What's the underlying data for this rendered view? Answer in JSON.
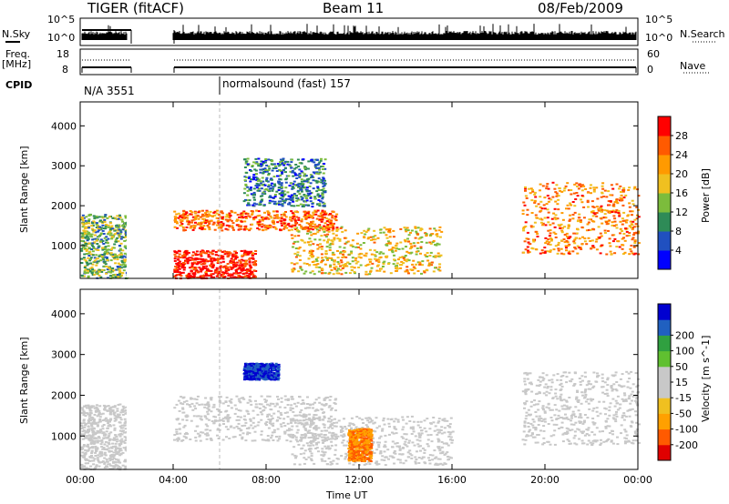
{
  "header": {
    "station": "TIGER (fitACF)",
    "beam": "Beam 11",
    "date": "08/Feb/2009"
  },
  "summary": {
    "nsky_label": "N.Sky",
    "nsearch_label": "N.Search",
    "freq_label_line1": "Freq.",
    "freq_label_line2": "[MHz]",
    "nave_label": "Nave",
    "noise_left_ticks": [
      "10^5",
      "10^0"
    ],
    "noise_right_ticks": [
      "10^5",
      "10^0"
    ],
    "freq_ticks": [
      "18",
      "8"
    ],
    "nave_ticks": [
      "60",
      "0"
    ]
  },
  "cpid": {
    "label": "CPID",
    "segments": [
      {
        "text": "N/A 3551",
        "start_hour": 0
      },
      {
        "text": "normalsound (fast) 157",
        "start_hour": 6
      }
    ]
  },
  "colors": {
    "power_scale": [
      "#0000ff",
      "#2050c0",
      "#2e8b57",
      "#7cbc3c",
      "#f0c020",
      "#ff9a00",
      "#ff5a00",
      "#ff0000"
    ],
    "velocity_scale": [
      "#e00000",
      "#ff5a00",
      "#ffa000",
      "#f0c020",
      "#c8c8c8",
      "#c8c8c8",
      "#60c030",
      "#30a040",
      "#2060c0",
      "#0000d0"
    ]
  },
  "chart_data": [
    {
      "type": "heatmap",
      "title": "Power",
      "xlabel": "Time UT",
      "ylabel": "Slant Range [km]",
      "x_ticks": [
        "00:00",
        "04:00",
        "08:00",
        "12:00",
        "16:00",
        "20:00",
        "00:00"
      ],
      "y_ticks": [
        "1000",
        "2000",
        "3000",
        "4000"
      ],
      "xlim_hours": [
        0,
        24
      ],
      "ylim_km": [
        180,
        4600
      ],
      "colorbar_label": "Power [dB]",
      "colorbar_ticks": [
        "4",
        "8",
        "12",
        "16",
        "20",
        "24",
        "28"
      ],
      "colorbar_range": [
        0,
        30
      ],
      "data_gap_hours": [
        2,
        4
      ],
      "features": [
        {
          "name": "near-range band",
          "t": [
            0,
            2
          ],
          "range_km": [
            200,
            1800
          ],
          "power_db": 12
        },
        {
          "name": "morning band",
          "t": [
            4,
            11
          ],
          "range_km": [
            1400,
            1900
          ],
          "power_db": 24
        },
        {
          "name": "morning near echoes",
          "t": [
            4,
            7.5
          ],
          "range_km": [
            200,
            900
          ],
          "power_db": 28
        },
        {
          "name": "midday echoes",
          "t": [
            9,
            15.5
          ],
          "range_km": [
            300,
            1500
          ],
          "power_db": 18
        },
        {
          "name": "high range patch",
          "t": [
            7,
            10.5
          ],
          "range_km": [
            2000,
            3200
          ],
          "power_db": 8
        },
        {
          "name": "evening descending band",
          "t": [
            19,
            24
          ],
          "range_km": [
            800,
            2600
          ],
          "power_db": 22
        }
      ]
    },
    {
      "type": "heatmap",
      "title": "Velocity",
      "xlabel": "Time UT",
      "ylabel": "Slant Range [km]",
      "x_ticks": [
        "00:00",
        "04:00",
        "08:00",
        "12:00",
        "16:00",
        "20:00",
        "00:00"
      ],
      "y_ticks": [
        "1000",
        "2000",
        "3000",
        "4000"
      ],
      "xlim_hours": [
        0,
        24
      ],
      "ylim_km": [
        180,
        4600
      ],
      "colorbar_label": "Velocity [m s^-1]",
      "colorbar_ticks": [
        "-200",
        "-100",
        "-50",
        "-15",
        "15",
        "50",
        "100",
        "200"
      ],
      "data_gap_hours": [
        2,
        4
      ],
      "features": [
        {
          "name": "ground scatter near range",
          "t": [
            0,
            2
          ],
          "range_km": [
            200,
            1800
          ],
          "velocity": 0
        },
        {
          "name": "ground scatter morning",
          "t": [
            4,
            11
          ],
          "range_km": [
            900,
            2000
          ],
          "velocity": 0
        },
        {
          "name": "positive velocity patch",
          "t": [
            7,
            8.5
          ],
          "range_km": [
            2400,
            2800
          ],
          "velocity": 200
        },
        {
          "name": "midday ground scatter",
          "t": [
            9,
            16
          ],
          "range_km": [
            300,
            1500
          ],
          "velocity": 0
        },
        {
          "name": "negative velocity streaks",
          "t": [
            11.5,
            12.5
          ],
          "range_km": [
            400,
            1200
          ],
          "velocity": -100
        },
        {
          "name": "evening ground scatter",
          "t": [
            19,
            24
          ],
          "range_km": [
            800,
            2600
          ],
          "velocity": 0
        }
      ]
    }
  ]
}
